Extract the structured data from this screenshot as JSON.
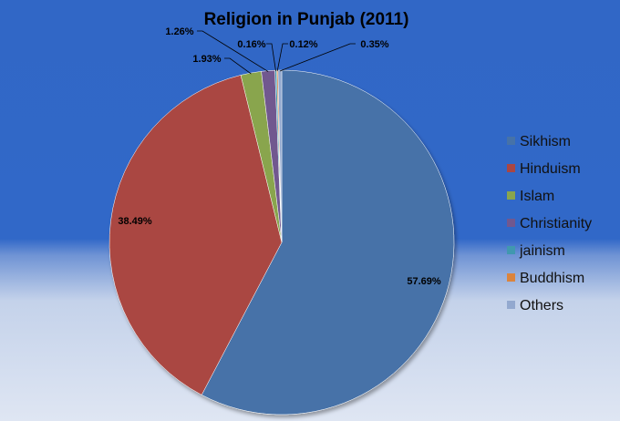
{
  "chart_data": {
    "type": "pie",
    "title": "Religion in Punjab (2011)",
    "categories": [
      "Sikhism",
      "Hinduism",
      "Islam",
      "Christianity",
      "jainism",
      "Buddhism",
      "Others"
    ],
    "values": [
      57.69,
      38.49,
      1.93,
      1.26,
      0.16,
      0.12,
      0.35
    ],
    "data_labels": [
      "57.69%",
      "38.49%",
      "1.93%",
      "1.26%",
      "0.16%",
      "0.12%",
      "0.35%"
    ],
    "colors": [
      "#4672a8",
      "#aa4643",
      "#89a54e",
      "#71588f",
      "#4198af",
      "#db843d",
      "#93a9cf"
    ],
    "legend_position": "right",
    "start_angle": "12 o'clock, clockwise"
  }
}
